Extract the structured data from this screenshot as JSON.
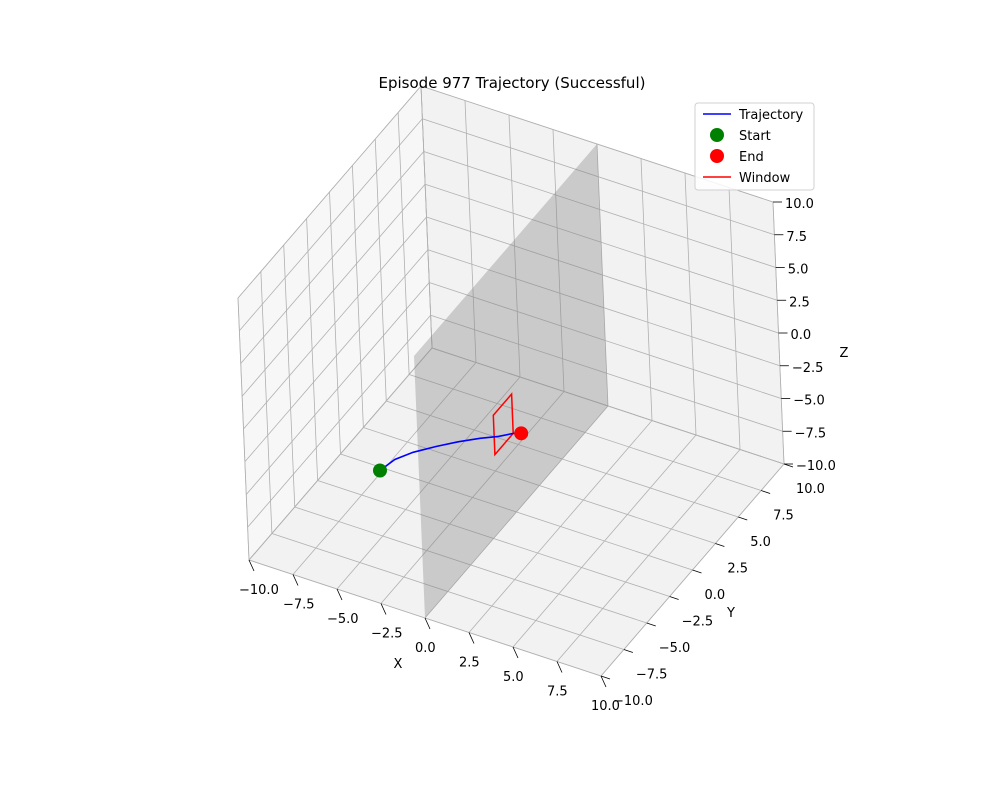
{
  "chart_data": {
    "type": "line",
    "projection": "3d",
    "title": "Episode 977 Trajectory (Successful)",
    "xlabel": "X",
    "ylabel": "Y",
    "zlabel": "Z",
    "xlim": [
      -10,
      10
    ],
    "ylim": [
      -10,
      10
    ],
    "zlim": [
      -10,
      10
    ],
    "x_ticks": [
      "−10.0",
      "−7.5",
      "−5.0",
      "−2.5",
      "0.0",
      "2.5",
      "5.0",
      "7.5",
      "10.0"
    ],
    "y_ticks": [
      "−10.0",
      "−7.5",
      "−5.0",
      "−2.5",
      "0.0",
      "2.5",
      "5.0",
      "7.5",
      "10.0"
    ],
    "z_ticks": [
      "−10.0",
      "−7.5",
      "−5.0",
      "−2.5",
      "0.0",
      "2.5",
      "5.0",
      "7.5",
      "10.0"
    ],
    "grid": true,
    "legend": {
      "placement": "top-right",
      "entries": [
        {
          "label": "Trajectory",
          "kind": "line",
          "color": "#0000ff"
        },
        {
          "label": "Start",
          "kind": "marker",
          "color": "#008000"
        },
        {
          "label": "End",
          "kind": "marker",
          "color": "#ff0000"
        },
        {
          "label": "Window",
          "kind": "line",
          "color": "#ff0000"
        }
      ]
    },
    "wall": {
      "x": 0,
      "y_range": [
        -10,
        10
      ],
      "z_range": [
        -10,
        10
      ],
      "color": "#808080"
    },
    "series": [
      {
        "name": "Trajectory",
        "color": "#0000ff",
        "points": [
          [
            -5.0,
            -5.0,
            -5.0
          ],
          [
            -4.4,
            -4.5,
            -4.3
          ],
          [
            -3.6,
            -4.0,
            -3.8
          ],
          [
            -2.6,
            -3.4,
            -3.4
          ],
          [
            -1.6,
            -2.9,
            -3.0
          ],
          [
            -0.6,
            -2.4,
            -2.7
          ],
          [
            0.3,
            -2.1,
            -2.4
          ],
          [
            1.0,
            -1.8,
            -2.1
          ],
          [
            1.4,
            -1.7,
            -2.0
          ]
        ]
      }
    ],
    "start": {
      "label": "Start",
      "x": -5.0,
      "y": -5.0,
      "z": -5.0,
      "color": "#008000"
    },
    "end": {
      "label": "End",
      "x": 1.4,
      "y": -1.7,
      "z": -2.0,
      "color": "#ff0000"
    },
    "window": {
      "label": "Window",
      "color": "#ff0000",
      "corners": [
        [
          0,
          -2.0,
          -4.0
        ],
        [
          0,
          0.0,
          -4.0
        ],
        [
          0,
          0.0,
          -1.0
        ],
        [
          0,
          -2.0,
          -1.0
        ]
      ]
    }
  }
}
